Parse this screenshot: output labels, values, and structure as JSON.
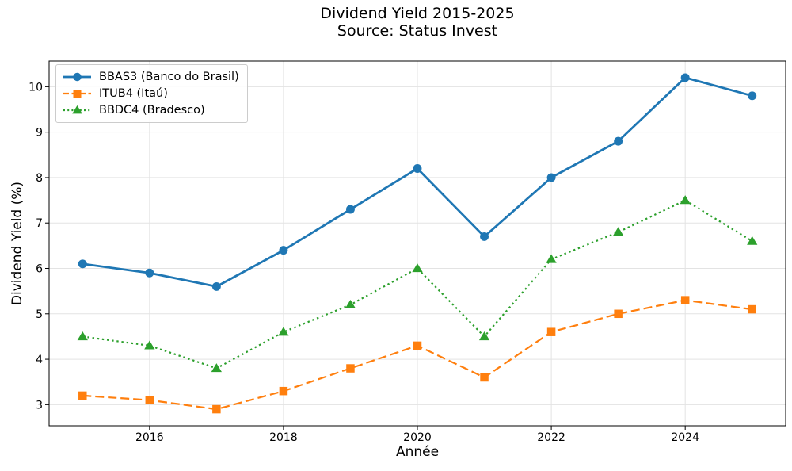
{
  "chart_data": {
    "type": "line",
    "title": "Dividend Yield 2015-2025",
    "subtitle": "Source: Status Invest",
    "xlabel": "Année",
    "ylabel": "Dividend Yield (%)",
    "x": [
      2015,
      2016,
      2017,
      2018,
      2019,
      2020,
      2021,
      2022,
      2023,
      2024,
      2025
    ],
    "xticks": [
      2016,
      2018,
      2020,
      2022,
      2024
    ],
    "yticks": [
      3,
      4,
      5,
      6,
      7,
      8,
      9,
      10
    ],
    "xlim": [
      2014.5,
      2025.5
    ],
    "ylim": [
      2.535,
      10.565
    ],
    "grid": true,
    "legend_position": "upper-left",
    "series": [
      {
        "name": "BBAS3 (Banco do Brasil)",
        "ticker": "bbas3",
        "color": "#1f77b4",
        "line_style": "solid",
        "marker": "circle",
        "values": [
          6.1,
          5.9,
          5.6,
          6.4,
          7.3,
          8.2,
          6.7,
          8.0,
          8.8,
          10.2,
          9.8
        ]
      },
      {
        "name": "ITUB4 (Itaú)",
        "ticker": "itub4",
        "color": "#ff7f0e",
        "line_style": "dashed",
        "marker": "square",
        "values": [
          3.2,
          3.1,
          2.9,
          3.3,
          3.8,
          4.3,
          3.6,
          4.6,
          5.0,
          5.3,
          5.1
        ]
      },
      {
        "name": "BBDC4 (Bradesco)",
        "ticker": "bbdc4",
        "color": "#2ca02c",
        "line_style": "dotted",
        "marker": "triangle",
        "values": [
          4.5,
          4.3,
          3.8,
          4.6,
          5.2,
          6.0,
          4.5,
          6.2,
          6.8,
          7.5,
          6.6
        ]
      }
    ]
  },
  "style": {
    "grid_color": "#e3e3e3",
    "spine_color": "#000000",
    "background": "#ffffff",
    "legend_border": "#cccccc"
  }
}
